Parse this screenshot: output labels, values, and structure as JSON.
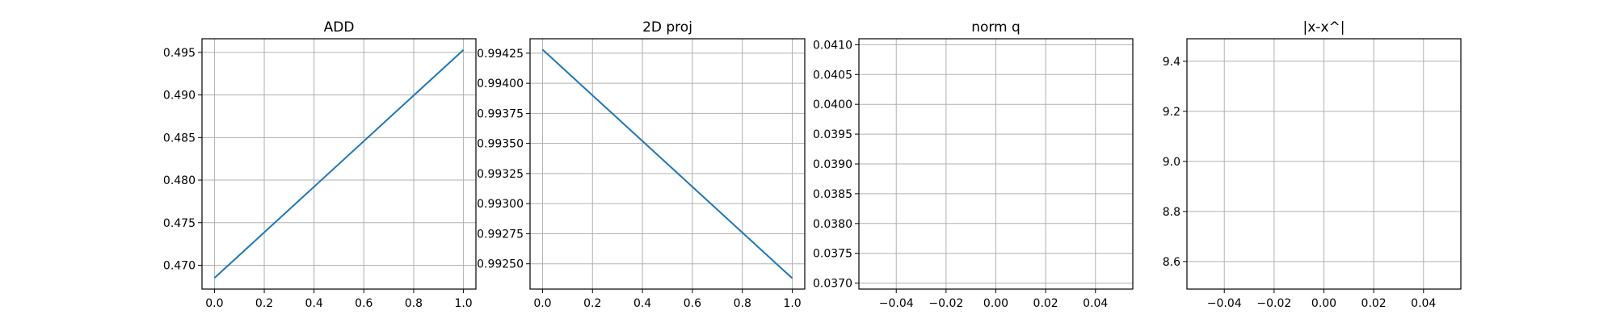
{
  "chart_data": [
    {
      "type": "line",
      "title": "ADD",
      "xlabel": "",
      "ylabel": "",
      "grid": true,
      "xlim": [
        -0.05,
        1.05
      ],
      "ylim": [
        0.4672,
        0.4966
      ],
      "xticks": [
        0.0,
        0.2,
        0.4,
        0.6,
        0.8,
        1.0
      ],
      "xtick_labels": [
        "0.0",
        "0.2",
        "0.4",
        "0.6",
        "0.8",
        "1.0"
      ],
      "yticks": [
        0.47,
        0.475,
        0.48,
        0.485,
        0.49,
        0.495
      ],
      "ytick_labels": [
        "0.470",
        "0.475",
        "0.480",
        "0.485",
        "0.490",
        "0.495"
      ],
      "series": [
        {
          "color": "#1f77b4",
          "x": [
            0.0,
            1.0
          ],
          "y": [
            0.4685,
            0.4953
          ]
        }
      ]
    },
    {
      "type": "line",
      "title": "2D proj",
      "xlabel": "",
      "ylabel": "",
      "grid": true,
      "xlim": [
        -0.05,
        1.05
      ],
      "ylim": [
        0.99229,
        0.99437
      ],
      "xticks": [
        0.0,
        0.2,
        0.4,
        0.6,
        0.8,
        1.0
      ],
      "xtick_labels": [
        "0.0",
        "0.2",
        "0.4",
        "0.6",
        "0.8",
        "1.0"
      ],
      "yticks": [
        0.9925,
        0.99275,
        0.993,
        0.99325,
        0.9935,
        0.99375,
        0.994,
        0.99425
      ],
      "ytick_labels": [
        "0.99250",
        "0.99275",
        "0.99300",
        "0.99325",
        "0.99350",
        "0.99375",
        "0.99400",
        "0.99425"
      ],
      "series": [
        {
          "color": "#1f77b4",
          "x": [
            0.0,
            1.0
          ],
          "y": [
            0.99428,
            0.99238
          ]
        }
      ]
    },
    {
      "type": "line",
      "title": "norm q",
      "xlabel": "",
      "ylabel": "",
      "grid": true,
      "xlim": [
        -0.055,
        0.055
      ],
      "ylim": [
        0.0369,
        0.0411
      ],
      "xticks": [
        -0.04,
        -0.02,
        0.0,
        0.02,
        0.04
      ],
      "xtick_labels": [
        "−0.04",
        "−0.02",
        "0.00",
        "0.02",
        "0.04"
      ],
      "yticks": [
        0.037,
        0.0375,
        0.038,
        0.0385,
        0.039,
        0.0395,
        0.04,
        0.0405,
        0.041
      ],
      "ytick_labels": [
        "0.0370",
        "0.0375",
        "0.0380",
        "0.0385",
        "0.0390",
        "0.0395",
        "0.0400",
        "0.0405",
        "0.0410"
      ],
      "series": []
    },
    {
      "type": "line",
      "title": "|x-x^|",
      "xlabel": "",
      "ylabel": "",
      "grid": true,
      "xlim": [
        -0.055,
        0.055
      ],
      "ylim": [
        8.49,
        9.49
      ],
      "xticks": [
        -0.04,
        -0.02,
        0.0,
        0.02,
        0.04
      ],
      "xtick_labels": [
        "−0.04",
        "−0.02",
        "0.00",
        "0.02",
        "0.04"
      ],
      "yticks": [
        8.6,
        8.8,
        9.0,
        9.2,
        9.4
      ],
      "ytick_labels": [
        "8.6",
        "8.8",
        "9.0",
        "9.2",
        "9.4"
      ],
      "series": []
    }
  ]
}
